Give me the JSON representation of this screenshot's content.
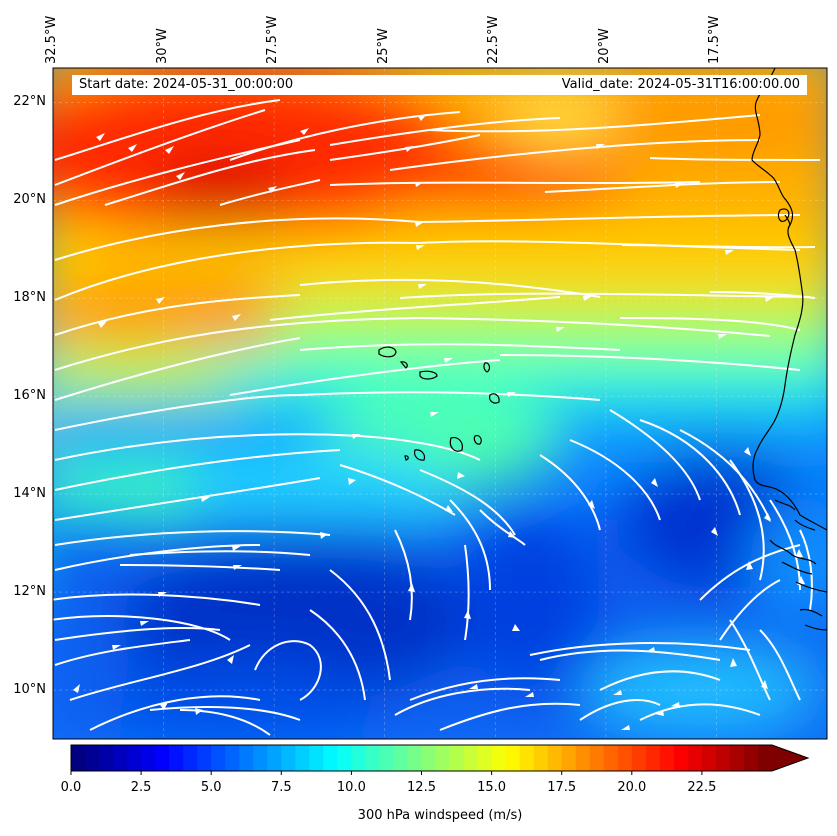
{
  "map": {
    "lon_ticks": [
      {
        "label": "32.5°W",
        "value": -32.5
      },
      {
        "label": "30°W",
        "value": -30
      },
      {
        "label": "27.5°W",
        "value": -27.5
      },
      {
        "label": "25°W",
        "value": -25
      },
      {
        "label": "22.5°W",
        "value": -22.5
      },
      {
        "label": "20°W",
        "value": -20
      },
      {
        "label": "17.5°W",
        "value": -17.5
      }
    ],
    "lat_ticks": [
      {
        "label": "22°N",
        "value": 22
      },
      {
        "label": "20°N",
        "value": 20
      },
      {
        "label": "18°N",
        "value": 18
      },
      {
        "label": "16°N",
        "value": 16
      },
      {
        "label": "14°N",
        "value": 14
      },
      {
        "label": "12°N",
        "value": 12
      },
      {
        "label": "10°N",
        "value": 10
      }
    ],
    "extent": {
      "lon_min": -32.5,
      "lon_max": -15.0,
      "lat_min": 9.0,
      "lat_max": 22.7
    },
    "start_date": "Start date: 2024-05-31_00:00:00",
    "valid_date": "Valid_date: 2024-05-31T16:00:00.00",
    "field": "300 hPa windspeed",
    "streamline_color": "#ffffff",
    "coastline_color": "#000000"
  },
  "colorbar": {
    "title": "300 hPa windspeed (m/s)",
    "min": 0,
    "max": 25,
    "extend": "max",
    "colormap": "jet",
    "ticks": [
      {
        "label": "0.0",
        "value": 0
      },
      {
        "label": "2.5",
        "value": 2.5
      },
      {
        "label": "5.0",
        "value": 5
      },
      {
        "label": "7.5",
        "value": 7.5
      },
      {
        "label": "10.0",
        "value": 10
      },
      {
        "label": "12.5",
        "value": 12.5
      },
      {
        "label": "15.0",
        "value": 15
      },
      {
        "label": "17.5",
        "value": 17.5
      },
      {
        "label": "20.0",
        "value": 20
      },
      {
        "label": "22.5",
        "value": 22.5
      }
    ]
  }
}
